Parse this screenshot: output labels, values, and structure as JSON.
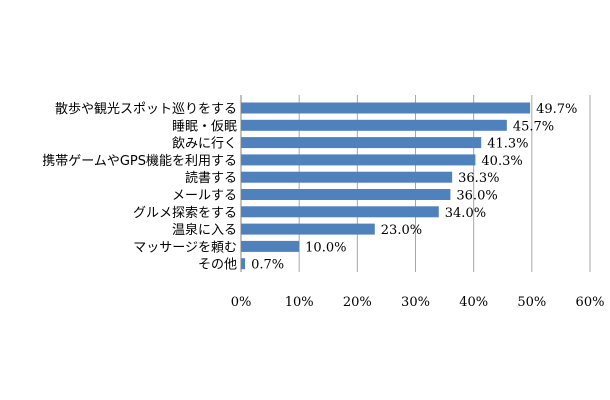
{
  "chart_data": {
    "type": "bar",
    "orientation": "horizontal",
    "title": "",
    "xlabel": "",
    "ylabel": "",
    "categories": [
      "散歩や観光スポット巡りをする",
      "睡眠・仮眠",
      "飲みに行く",
      "携帯ゲームやGPS機能を利用する",
      "読書する",
      "メールする",
      "グルメ探索をする",
      "温泉に入る",
      "マッサージを頼む",
      "その他"
    ],
    "values": [
      49.7,
      45.7,
      41.3,
      40.3,
      36.3,
      36.0,
      34.0,
      23.0,
      10.0,
      0.7
    ],
    "value_labels": [
      "49.7%",
      "45.7%",
      "41.3%",
      "40.3%",
      "36.3%",
      "36.0%",
      "34.0%",
      "23.0%",
      "10.0%",
      "0.7%"
    ],
    "xlim": [
      0,
      60
    ],
    "xticks": [
      0,
      10,
      20,
      30,
      40,
      50,
      60
    ],
    "xtick_labels": [
      "0%",
      "10%",
      "20%",
      "30%",
      "40%",
      "50%",
      "60%"
    ],
    "grid": "vertical",
    "colors": {
      "bar": "#4f81bd",
      "grid": "#a6a6a6",
      "axis": "#808080"
    }
  }
}
